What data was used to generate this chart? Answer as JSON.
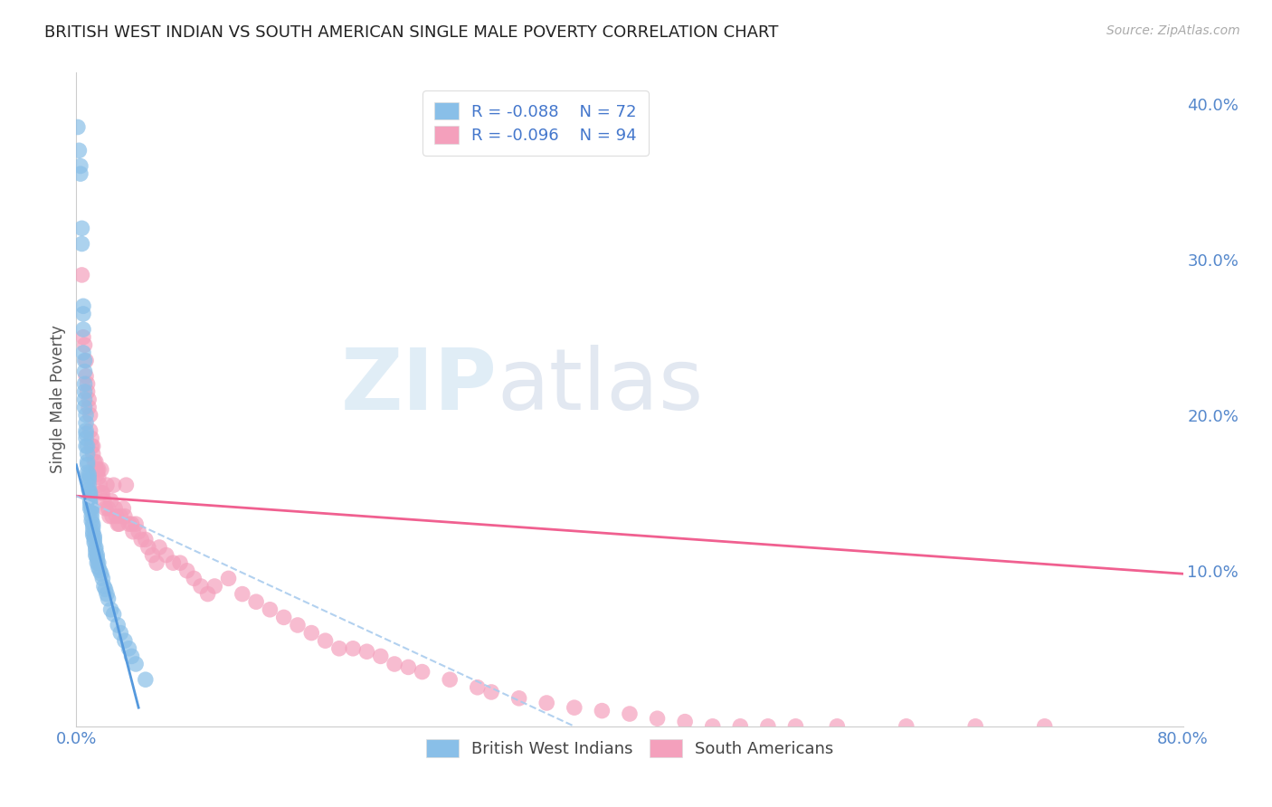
{
  "title": "BRITISH WEST INDIAN VS SOUTH AMERICAN SINGLE MALE POVERTY CORRELATION CHART",
  "source": "Source: ZipAtlas.com",
  "ylabel": "Single Male Poverty",
  "xlim": [
    0.0,
    0.8
  ],
  "ylim": [
    0.0,
    0.42
  ],
  "xticks": [
    0.0,
    0.1,
    0.2,
    0.3,
    0.4,
    0.5,
    0.6,
    0.7,
    0.8
  ],
  "xticklabels": [
    "0.0%",
    "",
    "",
    "",
    "",
    "",
    "",
    "",
    "80.0%"
  ],
  "yticks_right": [
    0.1,
    0.2,
    0.3,
    0.4
  ],
  "yticklabels_right": [
    "10.0%",
    "20.0%",
    "30.0%",
    "40.0%"
  ],
  "legend_r1": "R = -0.088",
  "legend_n1": "N = 72",
  "legend_r2": "R = -0.096",
  "legend_n2": "N = 94",
  "color_bwi_dot": "#89bfe8",
  "color_sa_dot": "#f4a0bc",
  "color_bwi_line": "#5599dd",
  "color_sa_line": "#f06090",
  "color_dash_line": "#aaccee",
  "watermark_zip": "ZIP",
  "watermark_atlas": "atlas",
  "bwi_x": [
    0.001,
    0.002,
    0.003,
    0.003,
    0.004,
    0.004,
    0.005,
    0.005,
    0.005,
    0.005,
    0.006,
    0.006,
    0.006,
    0.006,
    0.006,
    0.006,
    0.007,
    0.007,
    0.007,
    0.007,
    0.007,
    0.007,
    0.008,
    0.008,
    0.008,
    0.008,
    0.008,
    0.009,
    0.009,
    0.009,
    0.009,
    0.009,
    0.01,
    0.01,
    0.01,
    0.01,
    0.01,
    0.011,
    0.011,
    0.011,
    0.011,
    0.012,
    0.012,
    0.012,
    0.012,
    0.013,
    0.013,
    0.013,
    0.014,
    0.014,
    0.014,
    0.015,
    0.015,
    0.015,
    0.016,
    0.016,
    0.017,
    0.018,
    0.019,
    0.02,
    0.021,
    0.022,
    0.023,
    0.025,
    0.027,
    0.03,
    0.032,
    0.035,
    0.038,
    0.04,
    0.043,
    0.05
  ],
  "bwi_y": [
    0.385,
    0.37,
    0.36,
    0.355,
    0.32,
    0.31,
    0.27,
    0.265,
    0.255,
    0.24,
    0.235,
    0.228,
    0.22,
    0.215,
    0.21,
    0.205,
    0.2,
    0.195,
    0.19,
    0.188,
    0.185,
    0.18,
    0.18,
    0.175,
    0.17,
    0.168,
    0.163,
    0.162,
    0.16,
    0.158,
    0.155,
    0.152,
    0.15,
    0.148,
    0.145,
    0.143,
    0.14,
    0.14,
    0.138,
    0.135,
    0.132,
    0.13,
    0.128,
    0.125,
    0.123,
    0.122,
    0.12,
    0.118,
    0.115,
    0.113,
    0.11,
    0.11,
    0.108,
    0.105,
    0.105,
    0.102,
    0.1,
    0.098,
    0.095,
    0.09,
    0.088,
    0.085,
    0.082,
    0.075,
    0.072,
    0.065,
    0.06,
    0.055,
    0.05,
    0.045,
    0.04,
    0.03
  ],
  "sa_x": [
    0.004,
    0.005,
    0.006,
    0.007,
    0.007,
    0.008,
    0.008,
    0.009,
    0.009,
    0.01,
    0.01,
    0.011,
    0.011,
    0.012,
    0.012,
    0.013,
    0.014,
    0.014,
    0.015,
    0.015,
    0.016,
    0.016,
    0.017,
    0.018,
    0.018,
    0.019,
    0.02,
    0.021,
    0.022,
    0.023,
    0.024,
    0.025,
    0.026,
    0.027,
    0.028,
    0.029,
    0.03,
    0.031,
    0.032,
    0.034,
    0.035,
    0.036,
    0.038,
    0.04,
    0.041,
    0.043,
    0.045,
    0.047,
    0.05,
    0.052,
    0.055,
    0.058,
    0.06,
    0.065,
    0.07,
    0.075,
    0.08,
    0.085,
    0.09,
    0.095,
    0.1,
    0.11,
    0.12,
    0.13,
    0.14,
    0.15,
    0.16,
    0.17,
    0.18,
    0.19,
    0.2,
    0.21,
    0.22,
    0.23,
    0.24,
    0.25,
    0.27,
    0.29,
    0.3,
    0.32,
    0.34,
    0.36,
    0.38,
    0.4,
    0.42,
    0.44,
    0.46,
    0.48,
    0.5,
    0.52,
    0.55,
    0.6,
    0.65,
    0.7
  ],
  "sa_y": [
    0.29,
    0.25,
    0.245,
    0.235,
    0.225,
    0.22,
    0.215,
    0.21,
    0.205,
    0.2,
    0.19,
    0.185,
    0.18,
    0.18,
    0.175,
    0.17,
    0.165,
    0.17,
    0.165,
    0.162,
    0.16,
    0.165,
    0.155,
    0.15,
    0.165,
    0.15,
    0.145,
    0.14,
    0.155,
    0.14,
    0.135,
    0.145,
    0.135,
    0.155,
    0.14,
    0.135,
    0.13,
    0.13,
    0.135,
    0.14,
    0.135,
    0.155,
    0.13,
    0.13,
    0.125,
    0.13,
    0.125,
    0.12,
    0.12,
    0.115,
    0.11,
    0.105,
    0.115,
    0.11,
    0.105,
    0.105,
    0.1,
    0.095,
    0.09,
    0.085,
    0.09,
    0.095,
    0.085,
    0.08,
    0.075,
    0.07,
    0.065,
    0.06,
    0.055,
    0.05,
    0.05,
    0.048,
    0.045,
    0.04,
    0.038,
    0.035,
    0.03,
    0.025,
    0.022,
    0.018,
    0.015,
    0.012,
    0.01,
    0.008,
    0.005,
    0.003,
    0.0,
    0.0,
    0.0,
    0.0,
    0.0,
    0.0,
    0.0,
    0.0
  ],
  "bwi_line_x0": 0.0,
  "bwi_line_x1": 0.045,
  "bwi_line_y0": 0.168,
  "bwi_line_y1": 0.012,
  "sa_line_x0": 0.0,
  "sa_line_x1": 0.8,
  "sa_line_y0": 0.148,
  "sa_line_y1": 0.098,
  "dash_line_x0": 0.0,
  "dash_line_x1": 0.36,
  "dash_line_y0": 0.148,
  "dash_line_y1": 0.0
}
